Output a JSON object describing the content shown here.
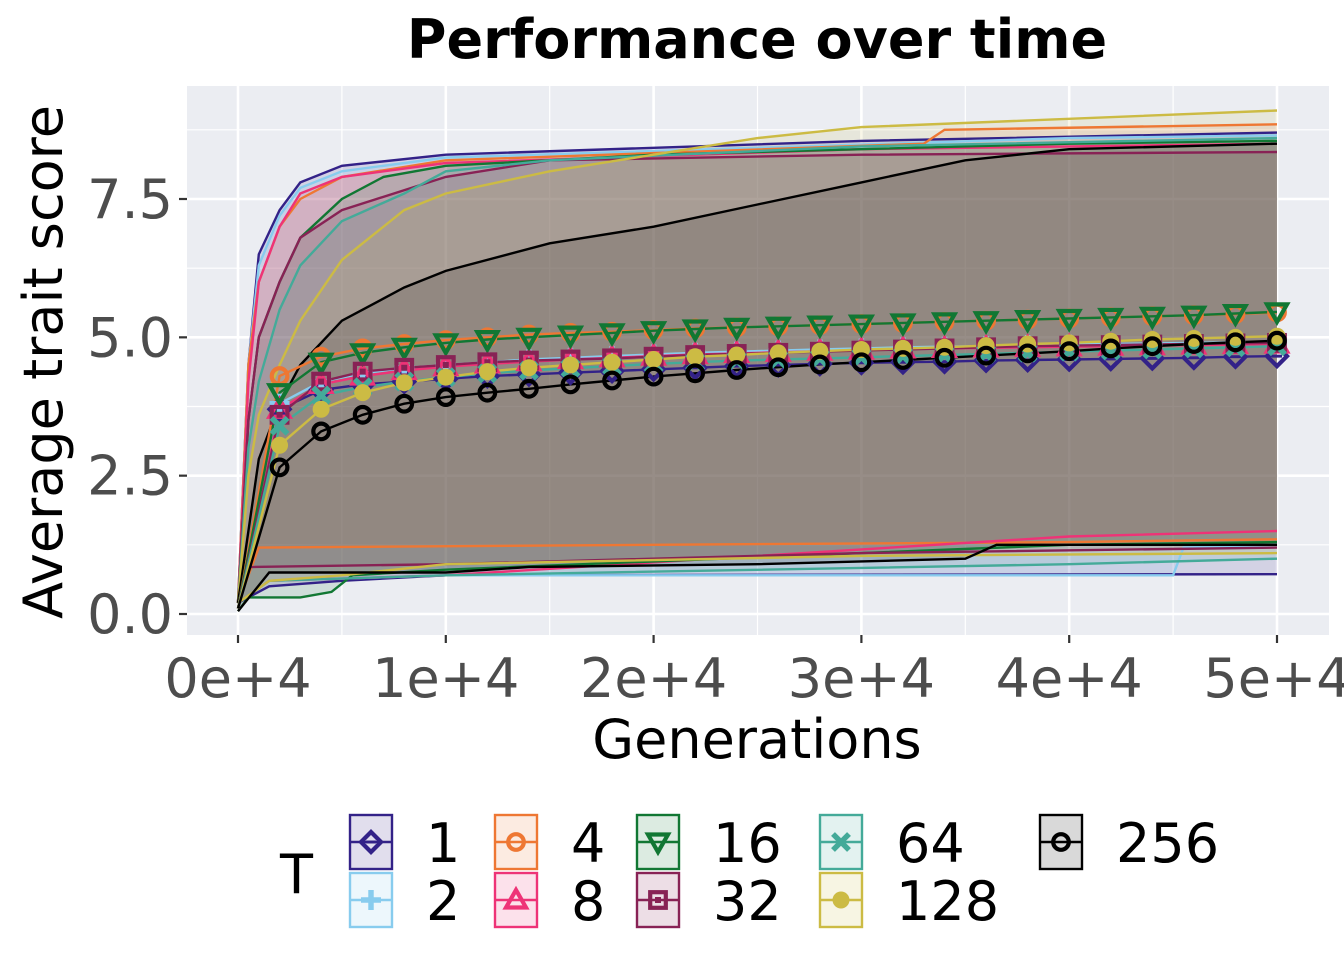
{
  "chart_data": {
    "type": "line",
    "title": "Performance over time",
    "xlabel": "Generations",
    "ylabel": "Average trait score",
    "x_ticks": [
      "0e+4",
      "1e+4",
      "2e+4",
      "3e+4",
      "4e+4",
      "5e+4"
    ],
    "x_tick_values": [
      0,
      10000,
      20000,
      30000,
      40000,
      50000
    ],
    "y_ticks": [
      "0.0",
      "2.5",
      "5.0",
      "7.5"
    ],
    "y_tick_values": [
      0,
      2.5,
      5.0,
      7.5
    ],
    "xlim": [
      -2400,
      50000
    ],
    "ylim": [
      -0.4,
      9.5
    ],
    "grid": true,
    "legend_title": "T",
    "legend_position": "bottom",
    "marker_x": [
      2000,
      4000,
      6000,
      8000,
      10000,
      12000,
      14000,
      16000,
      18000,
      20000,
      22000,
      24000,
      26000,
      28000,
      30000,
      32000,
      34000,
      36000,
      38000,
      40000,
      42000,
      44000,
      46000,
      48000,
      50000
    ],
    "series": [
      {
        "name": "1",
        "color": "#332288",
        "marker": "diamond",
        "mean": [
          3.7,
          4.05,
          4.15,
          4.2,
          4.25,
          4.3,
          4.33,
          4.36,
          4.39,
          4.42,
          4.45,
          4.48,
          4.5,
          4.52,
          4.54,
          4.55,
          4.56,
          4.58,
          4.59,
          4.6,
          4.61,
          4.62,
          4.63,
          4.65,
          4.66
        ],
        "max": [
          [
            0,
            0.2
          ],
          [
            500,
            4.5
          ],
          [
            1000,
            6.5
          ],
          [
            2000,
            7.3
          ],
          [
            3000,
            7.8
          ],
          [
            5000,
            8.1
          ],
          [
            10000,
            8.3
          ],
          [
            30000,
            8.55
          ],
          [
            50000,
            8.7
          ]
        ],
        "min": [
          [
            0,
            0.2
          ],
          [
            1500,
            0.5
          ],
          [
            5000,
            0.6
          ],
          [
            10000,
            0.7
          ],
          [
            50000,
            0.72
          ]
        ]
      },
      {
        "name": "2",
        "color": "#88CCEE",
        "marker": "plus",
        "mean": [
          3.8,
          4.2,
          4.35,
          4.45,
          4.5,
          4.55,
          4.6,
          4.63,
          4.66,
          4.69,
          4.72,
          4.74,
          4.76,
          4.78,
          4.8,
          4.82,
          4.83,
          4.84,
          4.86,
          4.87,
          4.88,
          4.89,
          4.9,
          4.91,
          4.92
        ],
        "max": [
          [
            0,
            0.2
          ],
          [
            500,
            4.5
          ],
          [
            1000,
            6.3
          ],
          [
            2000,
            7.2
          ],
          [
            3000,
            7.7
          ],
          [
            5000,
            8.0
          ],
          [
            10000,
            8.25
          ],
          [
            40000,
            8.6
          ],
          [
            50000,
            8.65
          ]
        ],
        "min": [
          [
            0,
            0.2
          ],
          [
            1500,
            0.6
          ],
          [
            10000,
            0.7
          ],
          [
            45000,
            0.7
          ],
          [
            45500,
            1.2
          ],
          [
            50000,
            1.25
          ]
        ]
      },
      {
        "name": "4",
        "color": "#EE7733",
        "marker": "circle",
        "mean": [
          4.3,
          4.65,
          4.8,
          4.88,
          4.95,
          5.0,
          5.05,
          5.08,
          5.1,
          5.13,
          5.16,
          5.18,
          5.2,
          5.22,
          5.24,
          5.26,
          5.28,
          5.3,
          5.32,
          5.34,
          5.36,
          5.38,
          5.4,
          5.42,
          5.45
        ],
        "max": [
          [
            0,
            0.2
          ],
          [
            500,
            4.5
          ],
          [
            1000,
            6.0
          ],
          [
            2000,
            7.0
          ],
          [
            3000,
            7.5
          ],
          [
            5000,
            7.9
          ],
          [
            10000,
            8.2
          ],
          [
            33000,
            8.5
          ],
          [
            34000,
            8.75
          ],
          [
            50000,
            8.85
          ]
        ],
        "min": [
          [
            0,
            0.2
          ],
          [
            1000,
            1.2
          ],
          [
            20000,
            1.25
          ],
          [
            40000,
            1.3
          ],
          [
            50000,
            1.35
          ]
        ]
      },
      {
        "name": "8",
        "color": "#EE3377",
        "marker": "triangle",
        "mean": [
          3.7,
          4.15,
          4.3,
          4.4,
          4.47,
          4.52,
          4.56,
          4.6,
          4.63,
          4.66,
          4.69,
          4.71,
          4.73,
          4.75,
          4.77,
          4.79,
          4.8,
          4.81,
          4.82,
          4.83,
          4.84,
          4.85,
          4.86,
          4.87,
          4.88
        ],
        "max": [
          [
            0,
            0.2
          ],
          [
            500,
            4.2
          ],
          [
            1000,
            6.0
          ],
          [
            2000,
            7.0
          ],
          [
            3000,
            7.6
          ],
          [
            5000,
            7.9
          ],
          [
            10000,
            8.15
          ],
          [
            30000,
            8.4
          ],
          [
            50000,
            8.5
          ]
        ],
        "min": [
          [
            0,
            0.2
          ],
          [
            1500,
            0.6
          ],
          [
            10000,
            0.7
          ],
          [
            40000,
            1.4
          ],
          [
            50000,
            1.5
          ]
        ]
      },
      {
        "name": "16",
        "color": "#117733",
        "marker": "triangle-down",
        "mean": [
          4.0,
          4.55,
          4.72,
          4.82,
          4.9,
          4.96,
          5.0,
          5.04,
          5.08,
          5.12,
          5.15,
          5.18,
          5.2,
          5.22,
          5.24,
          5.26,
          5.28,
          5.3,
          5.32,
          5.34,
          5.36,
          5.38,
          5.4,
          5.43,
          5.46
        ],
        "max": [
          [
            0,
            0.2
          ],
          [
            500,
            3.5
          ],
          [
            1000,
            5.0
          ],
          [
            2000,
            6.0
          ],
          [
            3000,
            6.8
          ],
          [
            5000,
            7.5
          ],
          [
            7000,
            7.9
          ],
          [
            10000,
            8.1
          ],
          [
            20000,
            8.3
          ],
          [
            40000,
            8.5
          ],
          [
            50000,
            8.55
          ]
        ],
        "min": [
          [
            0,
            0.05
          ],
          [
            500,
            0.3
          ],
          [
            3000,
            0.3
          ],
          [
            4500,
            0.4
          ],
          [
            5500,
            0.7
          ],
          [
            10000,
            0.8
          ],
          [
            40000,
            1.25
          ],
          [
            50000,
            1.3
          ]
        ]
      },
      {
        "name": "32",
        "color": "#882255",
        "marker": "square",
        "mean": [
          3.6,
          4.2,
          4.38,
          4.45,
          4.5,
          4.55,
          4.58,
          4.6,
          4.62,
          4.65,
          4.68,
          4.7,
          4.72,
          4.74,
          4.76,
          4.78,
          4.8,
          4.82,
          4.84,
          4.85,
          4.86,
          4.87,
          4.88,
          4.89,
          4.9
        ],
        "max": [
          [
            0,
            0.2
          ],
          [
            500,
            3.5
          ],
          [
            1000,
            5.0
          ],
          [
            2000,
            6.0
          ],
          [
            3000,
            6.8
          ],
          [
            5000,
            7.3
          ],
          [
            10000,
            7.9
          ],
          [
            15000,
            8.2
          ],
          [
            30000,
            8.3
          ],
          [
            50000,
            8.35
          ]
        ],
        "min": [
          [
            0,
            0.2
          ],
          [
            500,
            0.85
          ],
          [
            10000,
            0.9
          ],
          [
            30000,
            1.1
          ],
          [
            50000,
            1.2
          ]
        ]
      },
      {
        "name": "64",
        "color": "#44AA99",
        "marker": "cross",
        "mean": [
          3.4,
          3.95,
          4.1,
          4.2,
          4.28,
          4.35,
          4.4,
          4.44,
          4.48,
          4.52,
          4.55,
          4.58,
          4.6,
          4.62,
          4.64,
          4.66,
          4.68,
          4.7,
          4.72,
          4.74,
          4.76,
          4.78,
          4.8,
          4.82,
          4.84
        ],
        "max": [
          [
            0,
            0.2
          ],
          [
            500,
            3.0
          ],
          [
            1000,
            4.2
          ],
          [
            2000,
            5.5
          ],
          [
            3000,
            6.3
          ],
          [
            5000,
            7.1
          ],
          [
            8000,
            7.6
          ],
          [
            10000,
            8.0
          ],
          [
            15000,
            8.2
          ],
          [
            30000,
            8.45
          ],
          [
            50000,
            8.6
          ]
        ],
        "min": [
          [
            0,
            0.2
          ],
          [
            1500,
            0.6
          ],
          [
            10000,
            0.7
          ],
          [
            40000,
            0.9
          ],
          [
            50000,
            1.0
          ]
        ]
      },
      {
        "name": "128",
        "color": "#CCBB44",
        "marker": "filled-circle",
        "mean": [
          3.05,
          3.7,
          4.0,
          4.18,
          4.28,
          4.38,
          4.45,
          4.5,
          4.55,
          4.6,
          4.65,
          4.68,
          4.72,
          4.75,
          4.78,
          4.8,
          4.82,
          4.85,
          4.88,
          4.9,
          4.93,
          4.96,
          4.98,
          5.0,
          5.02
        ],
        "max": [
          [
            0,
            0.2
          ],
          [
            500,
            2.5
          ],
          [
            1000,
            3.6
          ],
          [
            2000,
            4.5
          ],
          [
            3000,
            5.3
          ],
          [
            5000,
            6.4
          ],
          [
            8000,
            7.3
          ],
          [
            10000,
            7.6
          ],
          [
            15000,
            8.0
          ],
          [
            20000,
            8.3
          ],
          [
            25000,
            8.6
          ],
          [
            30000,
            8.8
          ],
          [
            50000,
            9.1
          ]
        ],
        "min": [
          [
            0,
            0.2
          ],
          [
            1500,
            0.6
          ],
          [
            5000,
            0.7
          ],
          [
            10000,
            0.9
          ],
          [
            30000,
            1.05
          ],
          [
            50000,
            1.1
          ]
        ]
      },
      {
        "name": "256",
        "color": "#000000",
        "marker": "circle",
        "mean": [
          2.65,
          3.3,
          3.6,
          3.8,
          3.92,
          4.0,
          4.07,
          4.15,
          4.22,
          4.29,
          4.35,
          4.41,
          4.46,
          4.51,
          4.55,
          4.59,
          4.63,
          4.67,
          4.71,
          4.75,
          4.8,
          4.84,
          4.88,
          4.91,
          4.94
        ],
        "max": [
          [
            0,
            0.2
          ],
          [
            500,
            1.5
          ],
          [
            1000,
            2.8
          ],
          [
            2000,
            3.8
          ],
          [
            3000,
            4.5
          ],
          [
            5000,
            5.3
          ],
          [
            8000,
            5.9
          ],
          [
            10000,
            6.2
          ],
          [
            15000,
            6.7
          ],
          [
            20000,
            7.0
          ],
          [
            25000,
            7.4
          ],
          [
            30000,
            7.8
          ],
          [
            35000,
            8.2
          ],
          [
            40000,
            8.4
          ],
          [
            50000,
            8.5
          ]
        ],
        "min": [
          [
            0,
            0.05
          ],
          [
            1500,
            0.75
          ],
          [
            10000,
            0.75
          ],
          [
            14000,
            0.85
          ],
          [
            25000,
            0.9
          ],
          [
            35000,
            1.0
          ],
          [
            36500,
            1.25
          ],
          [
            50000,
            1.25
          ]
        ]
      }
    ]
  }
}
